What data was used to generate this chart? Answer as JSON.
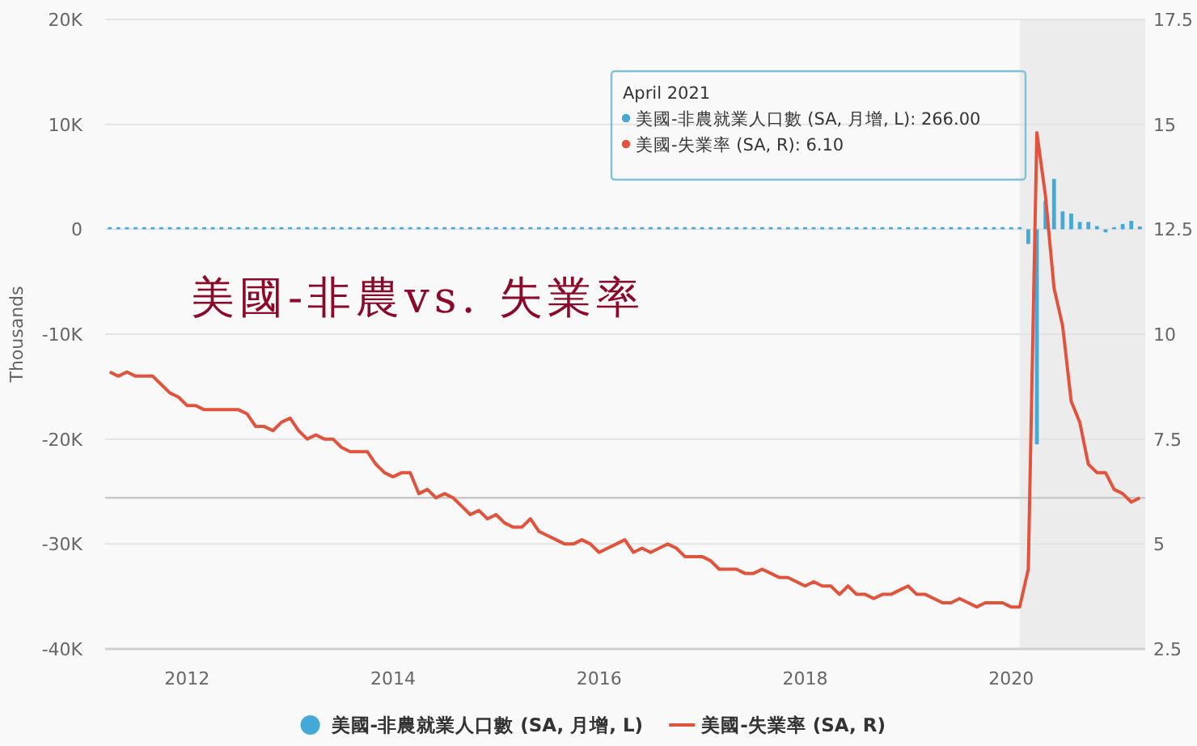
{
  "chart_data": {
    "type": "line",
    "title": "美國-非農vs. 失業率",
    "ylabel": "Thousands",
    "x": [
      "2011-04",
      "2011-05",
      "2011-06",
      "2011-07",
      "2011-08",
      "2011-09",
      "2011-10",
      "2011-11",
      "2011-12",
      "2012-01",
      "2012-02",
      "2012-03",
      "2012-04",
      "2012-05",
      "2012-06",
      "2012-07",
      "2012-08",
      "2012-09",
      "2012-10",
      "2012-11",
      "2012-12",
      "2013-01",
      "2013-02",
      "2013-03",
      "2013-04",
      "2013-05",
      "2013-06",
      "2013-07",
      "2013-08",
      "2013-09",
      "2013-10",
      "2013-11",
      "2013-12",
      "2014-01",
      "2014-02",
      "2014-03",
      "2014-04",
      "2014-05",
      "2014-06",
      "2014-07",
      "2014-08",
      "2014-09",
      "2014-10",
      "2014-11",
      "2014-12",
      "2015-01",
      "2015-02",
      "2015-03",
      "2015-04",
      "2015-05",
      "2015-06",
      "2015-07",
      "2015-08",
      "2015-09",
      "2015-10",
      "2015-11",
      "2015-12",
      "2016-01",
      "2016-02",
      "2016-03",
      "2016-04",
      "2016-05",
      "2016-06",
      "2016-07",
      "2016-08",
      "2016-09",
      "2016-10",
      "2016-11",
      "2016-12",
      "2017-01",
      "2017-02",
      "2017-03",
      "2017-04",
      "2017-05",
      "2017-06",
      "2017-07",
      "2017-08",
      "2017-09",
      "2017-10",
      "2017-11",
      "2017-12",
      "2018-01",
      "2018-02",
      "2018-03",
      "2018-04",
      "2018-05",
      "2018-06",
      "2018-07",
      "2018-08",
      "2018-09",
      "2018-10",
      "2018-11",
      "2018-12",
      "2019-01",
      "2019-02",
      "2019-03",
      "2019-04",
      "2019-05",
      "2019-06",
      "2019-07",
      "2019-08",
      "2019-09",
      "2019-10",
      "2019-11",
      "2019-12",
      "2020-01",
      "2020-02",
      "2020-03",
      "2020-04",
      "2020-05",
      "2020-06",
      "2020-07",
      "2020-08",
      "2020-09",
      "2020-10",
      "2020-11",
      "2020-12",
      "2021-01",
      "2021-02",
      "2021-03",
      "2021-04"
    ],
    "series": [
      {
        "name": "美國-非農就業人口數 (SA, 月增, L)",
        "type": "bar",
        "color": "#45a9d8",
        "values": [
          200,
          200,
          200,
          200,
          200,
          200,
          200,
          200,
          200,
          200,
          200,
          200,
          200,
          200,
          200,
          200,
          200,
          200,
          200,
          200,
          200,
          200,
          200,
          200,
          200,
          200,
          200,
          200,
          200,
          200,
          200,
          200,
          200,
          200,
          200,
          200,
          200,
          200,
          200,
          200,
          200,
          200,
          200,
          200,
          200,
          200,
          200,
          200,
          200,
          200,
          200,
          200,
          200,
          200,
          200,
          200,
          200,
          200,
          200,
          200,
          200,
          200,
          200,
          200,
          200,
          200,
          200,
          200,
          200,
          200,
          200,
          200,
          200,
          200,
          200,
          200,
          200,
          200,
          200,
          200,
          200,
          200,
          200,
          200,
          200,
          200,
          200,
          200,
          200,
          200,
          200,
          200,
          200,
          200,
          200,
          200,
          200,
          200,
          200,
          200,
          200,
          200,
          200,
          200,
          200,
          200,
          200,
          -1400,
          -20500,
          2700,
          4800,
          1700,
          1500,
          700,
          700,
          300,
          -300,
          200,
          500,
          800,
          266
        ]
      },
      {
        "name": "美國-失業率 (SA, R)",
        "axis": "y2",
        "color": "#e0533c",
        "values": [
          9.1,
          9.0,
          9.1,
          9.0,
          9.0,
          9.0,
          8.8,
          8.6,
          8.5,
          8.3,
          8.3,
          8.2,
          8.2,
          8.2,
          8.2,
          8.2,
          8.1,
          7.8,
          7.8,
          7.7,
          7.9,
          8.0,
          7.7,
          7.5,
          7.6,
          7.5,
          7.5,
          7.3,
          7.2,
          7.2,
          7.2,
          6.9,
          6.7,
          6.6,
          6.7,
          6.7,
          6.2,
          6.3,
          6.1,
          6.2,
          6.1,
          5.9,
          5.7,
          5.8,
          5.6,
          5.7,
          5.5,
          5.4,
          5.4,
          5.6,
          5.3,
          5.2,
          5.1,
          5.0,
          5.0,
          5.1,
          5.0,
          4.8,
          4.9,
          5.0,
          5.1,
          4.8,
          4.9,
          4.8,
          4.9,
          5.0,
          4.9,
          4.7,
          4.7,
          4.7,
          4.6,
          4.4,
          4.4,
          4.4,
          4.3,
          4.3,
          4.4,
          4.3,
          4.2,
          4.2,
          4.1,
          4.0,
          4.1,
          4.0,
          4.0,
          3.8,
          4.0,
          3.8,
          3.8,
          3.7,
          3.8,
          3.8,
          3.9,
          4.0,
          3.8,
          3.8,
          3.7,
          3.6,
          3.6,
          3.7,
          3.6,
          3.5,
          3.6,
          3.6,
          3.6,
          3.5,
          3.5,
          4.4,
          14.8,
          13.3,
          11.1,
          10.2,
          8.4,
          7.9,
          6.9,
          6.7,
          6.7,
          6.3,
          6.2,
          6.0,
          6.1
        ]
      }
    ],
    "xlim": [
      "2011-03-15",
      "2021-04-20"
    ],
    "xticks": [
      "2012",
      "2014",
      "2016",
      "2018",
      "2020"
    ],
    "ylim": [
      -40000,
      20000
    ],
    "yticks": [
      {
        "value": -40000,
        "label": "-40K"
      },
      {
        "value": -30000,
        "label": "-30K"
      },
      {
        "value": -20000,
        "label": "-20K"
      },
      {
        "value": -10000,
        "label": "-10K"
      },
      0,
      {
        "value": 10000,
        "label": "10K"
      },
      {
        "value": 20000,
        "label": "20K"
      }
    ],
    "y2lim": [
      2.5,
      17.5
    ],
    "y2ticks": [
      2.5,
      5,
      7.5,
      10,
      12.5,
      15,
      17.5
    ],
    "grid": "y",
    "legend": "bottom",
    "bands": [
      {
        "axis": "x",
        "from": "2020-02",
        "to": "2021-04-20",
        "color": "#ececec"
      }
    ],
    "ref_lines": [
      {
        "axis": "y2",
        "value": 6.1,
        "color": "#c8c8c8"
      }
    ],
    "annotations": [
      "April 2021",
      "美國-非農就業人口數 (SA, 月增, L): 266.00",
      "美國-失業率 (SA, R): 6.10"
    ]
  }
}
